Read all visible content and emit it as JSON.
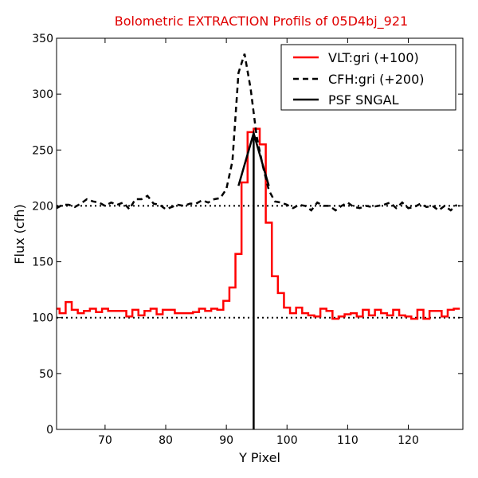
{
  "chart_data": {
    "type": "line",
    "title": "Bolometric EXTRACTION Profils of 05D4bj_921",
    "title_color": "#e00000",
    "xlabel": "Y Pixel",
    "ylabel": "Flux (cfh)",
    "xlim": [
      62,
      129
    ],
    "ylim": [
      0,
      350
    ],
    "x_ticks": [
      70,
      80,
      90,
      100,
      110,
      120
    ],
    "y_ticks": [
      0,
      50,
      100,
      150,
      200,
      250,
      300,
      350
    ],
    "legend_position": "top-right",
    "reference_lines": [
      {
        "y": 100,
        "style": "dotted",
        "color": "#000000"
      },
      {
        "y": 200,
        "style": "dotted",
        "color": "#000000"
      }
    ],
    "series": [
      {
        "name": "VLT:gri (+100)",
        "color": "#ff0000",
        "style": "steps",
        "x": [
          62,
          63,
          64,
          65,
          66,
          67,
          68,
          69,
          70,
          71,
          72,
          73,
          74,
          75,
          76,
          77,
          78,
          79,
          80,
          81,
          82,
          83,
          84,
          85,
          86,
          87,
          88,
          89,
          90,
          91,
          92,
          93,
          94,
          95,
          96,
          97,
          98,
          99,
          100,
          101,
          102,
          103,
          104,
          105,
          106,
          107,
          108,
          109,
          110,
          111,
          112,
          113,
          114,
          115,
          116,
          117,
          118,
          119,
          120,
          121,
          122,
          123,
          124,
          125,
          126,
          127,
          128
        ],
        "values": [
          108,
          104,
          114,
          107,
          104,
          106,
          108,
          105,
          108,
          106,
          106,
          106,
          101,
          107,
          102,
          106,
          108,
          103,
          107,
          107,
          104,
          104,
          104,
          105,
          108,
          106,
          108,
          107,
          115,
          127,
          157,
          221,
          266,
          269,
          255,
          185,
          137,
          122,
          109,
          104,
          109,
          104,
          102,
          101,
          108,
          106,
          99,
          101,
          103,
          104,
          101,
          107,
          102,
          107,
          104,
          102,
          107,
          102,
          101,
          99,
          107,
          99,
          106,
          106,
          101,
          107,
          108
        ]
      },
      {
        "name": "CFH:gri (+200)",
        "color": "#000000",
        "style": "dashed",
        "x": [
          62,
          63,
          64,
          65,
          66,
          67,
          68,
          69,
          70,
          71,
          72,
          73,
          74,
          75,
          76,
          77,
          78,
          79,
          80,
          81,
          82,
          83,
          84,
          85,
          86,
          87,
          88,
          89,
          90,
          91,
          92,
          93,
          94,
          95,
          96,
          97,
          98,
          99,
          100,
          101,
          102,
          103,
          104,
          105,
          106,
          107,
          108,
          109,
          110,
          111,
          112,
          113,
          114,
          115,
          116,
          117,
          118,
          119,
          120,
          121,
          122,
          123,
          124,
          125,
          126,
          127,
          128
        ],
        "values": [
          198,
          201,
          201,
          199,
          202,
          206,
          204,
          203,
          200,
          203,
          201,
          203,
          197,
          206,
          206,
          209,
          202,
          201,
          197,
          199,
          201,
          200,
          202,
          202,
          205,
          203,
          206,
          207,
          215,
          240,
          319,
          336,
          305,
          262,
          236,
          214,
          204,
          203,
          201,
          198,
          201,
          200,
          196,
          203,
          200,
          200,
          196,
          200,
          203,
          199,
          198,
          200,
          199,
          200,
          201,
          203,
          198,
          203,
          198,
          199,
          202,
          199,
          200,
          196,
          200,
          196,
          201
        ]
      },
      {
        "name": "PSF SNGAL",
        "color": "#000000",
        "style": "solid",
        "x": [
          92,
          94.5,
          97
        ],
        "values": [
          218,
          265,
          218
        ]
      }
    ],
    "vertical_marker": {
      "x": 94.5,
      "y": [
        0,
        265
      ],
      "color": "#000000"
    }
  }
}
